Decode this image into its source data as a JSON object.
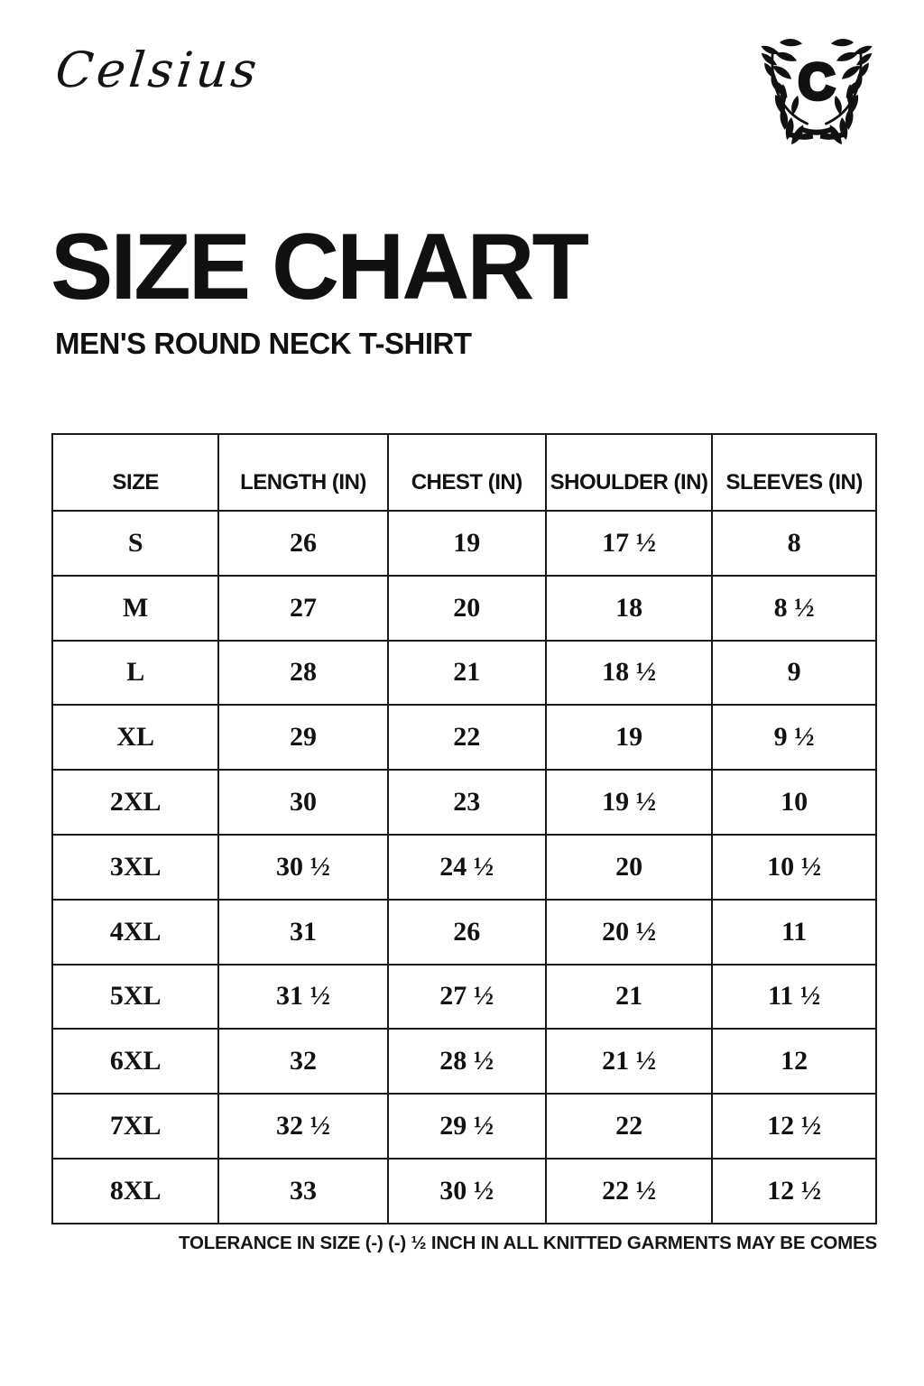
{
  "brand": {
    "name": "Celsius",
    "logo_monogram": "C",
    "logo_icon": "laurel-wreath-icon"
  },
  "page": {
    "title": "SIZE CHART",
    "subtitle": "MEN'S ROUND NECK T-SHIRT"
  },
  "table": {
    "columns": [
      "SIZE",
      "LENGTH (IN)",
      "CHEST (IN)",
      "SHOULDER (IN)",
      "SLEEVES (IN)"
    ],
    "rows": [
      {
        "size": "S",
        "length_in": "26",
        "chest_in": "19",
        "shoulder_in": "17 ½",
        "sleeves_in": "8"
      },
      {
        "size": "M",
        "length_in": "27",
        "chest_in": "20",
        "shoulder_in": "18",
        "sleeves_in": "8 ½"
      },
      {
        "size": "L",
        "length_in": "28",
        "chest_in": "21",
        "shoulder_in": "18 ½",
        "sleeves_in": "9"
      },
      {
        "size": "XL",
        "length_in": "29",
        "chest_in": "22",
        "shoulder_in": "19",
        "sleeves_in": "9 ½"
      },
      {
        "size": "2XL",
        "length_in": "30",
        "chest_in": "23",
        "shoulder_in": "19 ½",
        "sleeves_in": "10"
      },
      {
        "size": "3XL",
        "length_in": "30 ½",
        "chest_in": "24 ½",
        "shoulder_in": "20",
        "sleeves_in": "10 ½"
      },
      {
        "size": "4XL",
        "length_in": "31",
        "chest_in": "26",
        "shoulder_in": "20 ½",
        "sleeves_in": "11"
      },
      {
        "size": "5XL",
        "length_in": "31 ½",
        "chest_in": "27 ½",
        "shoulder_in": "21",
        "sleeves_in": "11 ½"
      },
      {
        "size": "6XL",
        "length_in": "32",
        "chest_in": "28 ½",
        "shoulder_in": "21 ½",
        "sleeves_in": "12"
      },
      {
        "size": "7XL",
        "length_in": "32 ½",
        "chest_in": "29 ½",
        "shoulder_in": "22",
        "sleeves_in": "12 ½"
      },
      {
        "size": "8XL",
        "length_in": "33",
        "chest_in": "30 ½",
        "shoulder_in": "22 ½",
        "sleeves_in": "12 ½"
      }
    ],
    "footnote": "TOLERANCE IN SIZE (-) (-) ½ INCH IN ALL KNITTED GARMENTS MAY BE COMES"
  },
  "colors": {
    "background": "#ffffff",
    "text": "#111111",
    "border": "#1a1a1a"
  }
}
